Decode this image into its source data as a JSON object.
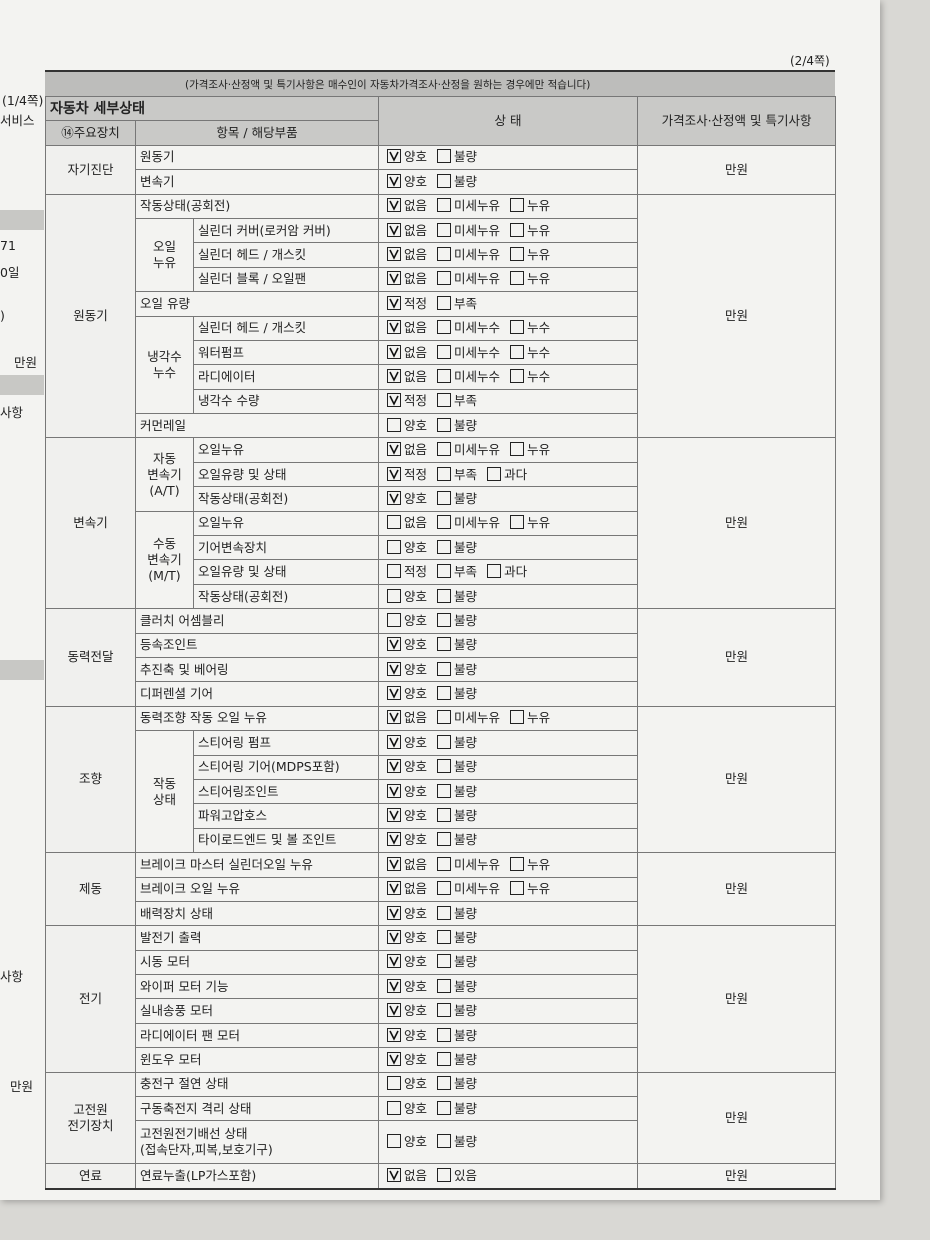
{
  "header": {
    "page_num": "(2/4쪽)",
    "section_title": "자동차 세부상태",
    "section_note": "(가격조사·산정액 및 특기사항은 매수인이 자동차가격조사·산정을 원하는 경우에만 적습니다)",
    "col_main": "⑭주요장치",
    "col_item": "항목 / 해당부품",
    "col_state": "상 태",
    "col_price": "가격조사·산정액 및 특기사항"
  },
  "margin": [
    "(1/4쪽)",
    "서비스",
    "71",
    "0일",
    ")",
    "만원",
    "사항",
    "사항",
    "만원"
  ],
  "groups": [
    {
      "name": "자기진단",
      "price": "만원",
      "entries": [
        {
          "item": "원동기",
          "options": [
            {
              "label": "양호",
              "checked": true
            },
            {
              "label": "불량",
              "checked": false
            }
          ]
        },
        {
          "item": "변속기",
          "options": [
            {
              "label": "양호",
              "checked": true
            },
            {
              "label": "불량",
              "checked": false
            }
          ]
        }
      ]
    },
    {
      "name": "원동기",
      "price": "만원",
      "entries": [
        {
          "item": "작동상태(공회전)",
          "options": [
            {
              "label": "없음",
              "checked": true
            },
            {
              "label": "미세누유",
              "checked": false
            },
            {
              "label": "누유",
              "checked": false
            }
          ]
        },
        {
          "sub": "오일\n누유",
          "rows": [
            {
              "item": "실린더 커버(로커암 커버)",
              "options": [
                {
                  "label": "없음",
                  "checked": true
                },
                {
                  "label": "미세누유",
                  "checked": false
                },
                {
                  "label": "누유",
                  "checked": false
                }
              ]
            },
            {
              "item": "실린더 헤드 / 개스킷",
              "options": [
                {
                  "label": "없음",
                  "checked": true
                },
                {
                  "label": "미세누유",
                  "checked": false
                },
                {
                  "label": "누유",
                  "checked": false
                }
              ]
            },
            {
              "item": "실린더 블록 / 오일팬",
              "options": [
                {
                  "label": "없음",
                  "checked": true
                },
                {
                  "label": "미세누유",
                  "checked": false
                },
                {
                  "label": "누유",
                  "checked": false
                }
              ]
            }
          ]
        },
        {
          "item": "오일 유량",
          "options": [
            {
              "label": "적정",
              "checked": true
            },
            {
              "label": "부족",
              "checked": false
            }
          ]
        },
        {
          "sub": "냉각수\n누수",
          "rows": [
            {
              "item": "실린더 헤드 / 개스킷",
              "options": [
                {
                  "label": "없음",
                  "checked": true
                },
                {
                  "label": "미세누수",
                  "checked": false
                },
                {
                  "label": "누수",
                  "checked": false
                }
              ]
            },
            {
              "item": "워터펌프",
              "options": [
                {
                  "label": "없음",
                  "checked": true
                },
                {
                  "label": "미세누수",
                  "checked": false
                },
                {
                  "label": "누수",
                  "checked": false
                }
              ]
            },
            {
              "item": "라디에이터",
              "options": [
                {
                  "label": "없음",
                  "checked": true
                },
                {
                  "label": "미세누수",
                  "checked": false
                },
                {
                  "label": "누수",
                  "checked": false
                }
              ]
            },
            {
              "item": "냉각수 수량",
              "options": [
                {
                  "label": "적정",
                  "checked": true
                },
                {
                  "label": "부족",
                  "checked": false
                }
              ]
            }
          ]
        },
        {
          "item": "커먼레일",
          "options": [
            {
              "label": "양호",
              "checked": false
            },
            {
              "label": "불량",
              "checked": false
            }
          ]
        }
      ]
    },
    {
      "name": "변속기",
      "price": "만원",
      "entries": [
        {
          "sub": "자동\n변속기\n(A/T)",
          "rows": [
            {
              "item": "오일누유",
              "options": [
                {
                  "label": "없음",
                  "checked": true
                },
                {
                  "label": "미세누유",
                  "checked": false
                },
                {
                  "label": "누유",
                  "checked": false
                }
              ]
            },
            {
              "item": "오일유량 및 상태",
              "options": [
                {
                  "label": "적정",
                  "checked": true
                },
                {
                  "label": "부족",
                  "checked": false
                },
                {
                  "label": "과다",
                  "checked": false
                }
              ]
            },
            {
              "item": "작동상태(공회전)",
              "options": [
                {
                  "label": "양호",
                  "checked": true
                },
                {
                  "label": "불량",
                  "checked": false
                }
              ]
            }
          ]
        },
        {
          "sub": "수동\n변속기\n(M/T)",
          "rows": [
            {
              "item": "오일누유",
              "options": [
                {
                  "label": "없음",
                  "checked": false
                },
                {
                  "label": "미세누유",
                  "checked": false
                },
                {
                  "label": "누유",
                  "checked": false
                }
              ]
            },
            {
              "item": "기어변속장치",
              "options": [
                {
                  "label": "양호",
                  "checked": false
                },
                {
                  "label": "불량",
                  "checked": false
                }
              ]
            },
            {
              "item": "오일유량 및 상태",
              "options": [
                {
                  "label": "적정",
                  "checked": false
                },
                {
                  "label": "부족",
                  "checked": false
                },
                {
                  "label": "과다",
                  "checked": false
                }
              ]
            },
            {
              "item": "작동상태(공회전)",
              "options": [
                {
                  "label": "양호",
                  "checked": false
                },
                {
                  "label": "불량",
                  "checked": false
                }
              ]
            }
          ]
        }
      ]
    },
    {
      "name": "동력전달",
      "price": "만원",
      "entries": [
        {
          "item": "클러치 어셈블리",
          "options": [
            {
              "label": "양호",
              "checked": false
            },
            {
              "label": "불량",
              "checked": false
            }
          ]
        },
        {
          "item": "등속조인트",
          "options": [
            {
              "label": "양호",
              "checked": true
            },
            {
              "label": "불량",
              "checked": false
            }
          ]
        },
        {
          "item": "추진축 및 베어링",
          "options": [
            {
              "label": "양호",
              "checked": true
            },
            {
              "label": "불량",
              "checked": false
            }
          ]
        },
        {
          "item": "디퍼렌셜 기어",
          "options": [
            {
              "label": "양호",
              "checked": true
            },
            {
              "label": "불량",
              "checked": false
            }
          ]
        }
      ]
    },
    {
      "name": "조향",
      "price": "만원",
      "entries": [
        {
          "item": "동력조향 작동 오일 누유",
          "options": [
            {
              "label": "없음",
              "checked": true
            },
            {
              "label": "미세누유",
              "checked": false
            },
            {
              "label": "누유",
              "checked": false
            }
          ]
        },
        {
          "sub": "작동\n상태",
          "rows": [
            {
              "item": "스티어링 펌프",
              "options": [
                {
                  "label": "양호",
                  "checked": true
                },
                {
                  "label": "불량",
                  "checked": false
                }
              ]
            },
            {
              "item": "스티어링 기어(MDPS포함)",
              "options": [
                {
                  "label": "양호",
                  "checked": true
                },
                {
                  "label": "불량",
                  "checked": false
                }
              ]
            },
            {
              "item": "스티어링조인트",
              "options": [
                {
                  "label": "양호",
                  "checked": true
                },
                {
                  "label": "불량",
                  "checked": false
                }
              ]
            },
            {
              "item": "파워고압호스",
              "options": [
                {
                  "label": "양호",
                  "checked": true
                },
                {
                  "label": "불량",
                  "checked": false
                }
              ]
            },
            {
              "item": "타이로드엔드 및 볼 조인트",
              "options": [
                {
                  "label": "양호",
                  "checked": true
                },
                {
                  "label": "불량",
                  "checked": false
                }
              ]
            }
          ]
        }
      ]
    },
    {
      "name": "제동",
      "price": "만원",
      "entries": [
        {
          "item": "브레이크 마스터 실린더오일 누유",
          "options": [
            {
              "label": "없음",
              "checked": true
            },
            {
              "label": "미세누유",
              "checked": false
            },
            {
              "label": "누유",
              "checked": false
            }
          ]
        },
        {
          "item": "브레이크 오일 누유",
          "options": [
            {
              "label": "없음",
              "checked": true
            },
            {
              "label": "미세누유",
              "checked": false
            },
            {
              "label": "누유",
              "checked": false
            }
          ]
        },
        {
          "item": "배력장치 상태",
          "options": [
            {
              "label": "양호",
              "checked": true
            },
            {
              "label": "불량",
              "checked": false
            }
          ]
        }
      ]
    },
    {
      "name": "전기",
      "price": "만원",
      "entries": [
        {
          "item": "발전기 출력",
          "options": [
            {
              "label": "양호",
              "checked": true
            },
            {
              "label": "불량",
              "checked": false
            }
          ]
        },
        {
          "item": "시동 모터",
          "options": [
            {
              "label": "양호",
              "checked": true
            },
            {
              "label": "불량",
              "checked": false
            }
          ]
        },
        {
          "item": "와이퍼 모터 기능",
          "options": [
            {
              "label": "양호",
              "checked": true
            },
            {
              "label": "불량",
              "checked": false
            }
          ]
        },
        {
          "item": "실내송풍 모터",
          "options": [
            {
              "label": "양호",
              "checked": true
            },
            {
              "label": "불량",
              "checked": false
            }
          ]
        },
        {
          "item": "라디에이터 팬 모터",
          "options": [
            {
              "label": "양호",
              "checked": true
            },
            {
              "label": "불량",
              "checked": false
            }
          ]
        },
        {
          "item": "윈도우 모터",
          "options": [
            {
              "label": "양호",
              "checked": true
            },
            {
              "label": "불량",
              "checked": false
            }
          ]
        }
      ]
    },
    {
      "name": "고전원\n전기장치",
      "price": "만원",
      "entries": [
        {
          "item": "충전구 절연 상태",
          "options": [
            {
              "label": "양호",
              "checked": false
            },
            {
              "label": "불량",
              "checked": false
            }
          ]
        },
        {
          "item": "구동축전지 격리 상태",
          "options": [
            {
              "label": "양호",
              "checked": false
            },
            {
              "label": "불량",
              "checked": false
            }
          ]
        },
        {
          "item": "고전원전기배선 상태\n(접속단자,피복,보호기구)",
          "options": [
            {
              "label": "양호",
              "checked": false
            },
            {
              "label": "불량",
              "checked": false
            }
          ]
        }
      ]
    },
    {
      "name": "연료",
      "price": "만원",
      "entries": [
        {
          "item": "연료누출(LP가스포함)",
          "options": [
            {
              "label": "없음",
              "checked": true
            },
            {
              "label": "있음",
              "checked": false
            }
          ]
        }
      ]
    }
  ]
}
